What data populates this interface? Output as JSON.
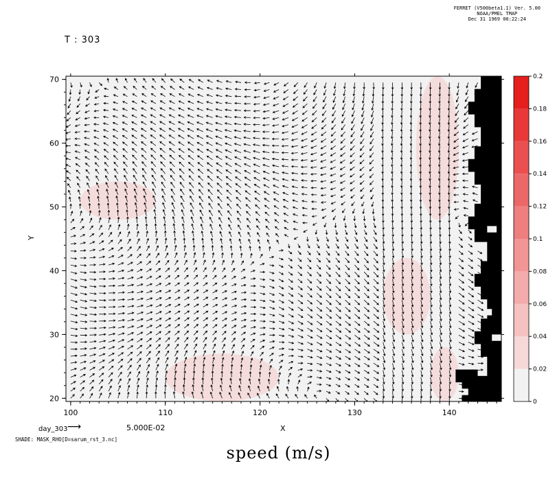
{
  "header": {
    "line1": "FERRET (V500beta1.1) Ver. 5.00",
    "line2": "NOAA/PMEL TMAP",
    "line3": "Dec 31 1969 00:22:24"
  },
  "time_label": "T : 303",
  "vector_label": "day_303",
  "vector_scale": "5.000E-02",
  "footer": "SHADE: MASK_RHO[D=sarum_rst_3.nc]",
  "big_title": "speed (m/s)",
  "chart_data": {
    "type": "heatmap",
    "xlabel": "X",
    "ylabel": "Y",
    "xlim": [
      99.5,
      145.5
    ],
    "ylim": [
      19.5,
      70.5
    ],
    "xticks": [
      100,
      110,
      120,
      130,
      140
    ],
    "yticks": [
      20,
      30,
      40,
      50,
      60,
      70
    ],
    "colorbar": {
      "levels": [
        0,
        0.02,
        0.04,
        0.06,
        0.08,
        0.1,
        0.12,
        0.14,
        0.16,
        0.18,
        0.2
      ],
      "tick_labels": [
        "0",
        "0.02",
        "0.04",
        "0.06",
        "0.08",
        "0.1",
        "0.12",
        "0.14",
        "0.16",
        "0.18",
        "0.2"
      ],
      "colors": [
        "#f2f2f2",
        "#f6d8d8",
        "#f5c1c1",
        "#f3abab",
        "#f19595",
        "#ee7f7f",
        "#ec6868",
        "#ea5050",
        "#e83838",
        "#e51e1e"
      ]
    },
    "land_color": "#000000",
    "background_color": "#f2f2f2",
    "shaded_regions": [
      {
        "name": "patch-mid-west",
        "x": [
          101,
          109
        ],
        "y": [
          48,
          54
        ],
        "value": 0.01
      },
      {
        "name": "patch-south",
        "x": [
          110,
          122
        ],
        "y": [
          19.5,
          27
        ],
        "value": 0.01
      },
      {
        "name": "patch-east-center",
        "x": [
          133,
          138
        ],
        "y": [
          30,
          42
        ],
        "value": 0.01
      },
      {
        "name": "patch-east-north",
        "x": [
          136.5,
          141
        ],
        "y": [
          48,
          70.5
        ],
        "value": 0.01
      },
      {
        "name": "patch-east-south",
        "x": [
          138,
          141
        ],
        "y": [
          19.5,
          28
        ],
        "value": 0.01
      }
    ],
    "vectors": "flow field, day_303, reference vector 5.000E-02"
  }
}
